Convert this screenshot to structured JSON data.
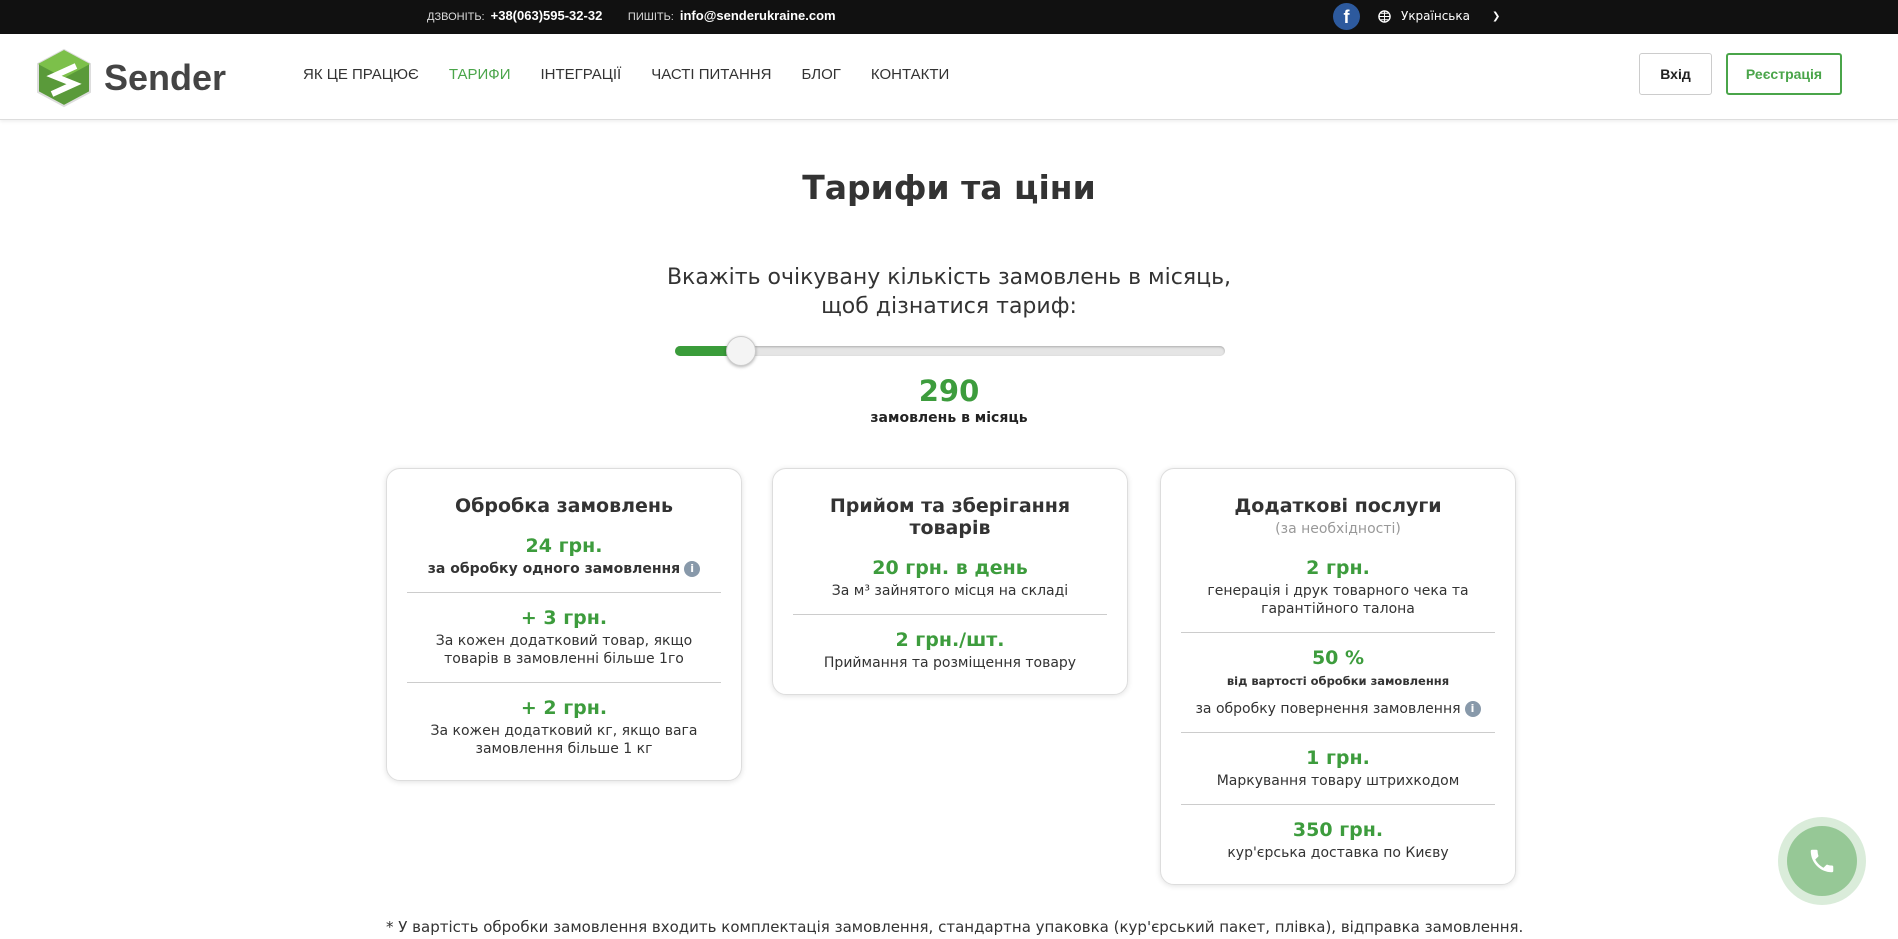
{
  "topbar": {
    "call_label": "ДЗВОНІТЬ:",
    "phone": "+38(063)595-32-32",
    "write_label": "ПИШІТЬ:",
    "email": "info@senderukraine.com",
    "facebook_icon": "f",
    "language": "Українська"
  },
  "header": {
    "logo_text": "Sender",
    "nav": [
      {
        "label": "ЯК ЦЕ ПРАЦЮЄ"
      },
      {
        "label": "ТАРИФИ",
        "active": true
      },
      {
        "label": "ІНТЕГРАЦІЇ"
      },
      {
        "label": "ЧАСТІ ПИТАННЯ"
      },
      {
        "label": "БЛОГ"
      },
      {
        "label": "КОНТАКТИ"
      }
    ],
    "login": "Вхід",
    "register": "Реєстрація"
  },
  "main": {
    "title": "Тарифи та ціни",
    "subtitle_1": "Вкажіть очікувану кількість замовлень в місяць,",
    "subtitle_2": "щоб дізнатися тариф:",
    "slider_percent": 12,
    "orders_value": "290",
    "orders_label": "замовлень в місяць",
    "cards": [
      {
        "title": "Обробка замовлень",
        "items": [
          {
            "price": "24 грн.",
            "desc": "за обробку одного замовлення"
          },
          {
            "price": "+ 3 грн.",
            "desc": "За кожен додатковий товар, якщо товарів в замовленні більше 1го"
          },
          {
            "price": "+ 2 грн.",
            "desc": "За кожен додатковий кг, якщо вага замовлення більше 1 кг"
          }
        ]
      },
      {
        "title": "Прийом та зберігання товарів",
        "items": [
          {
            "price": "20 грн. в день",
            "desc": "За м³ зайнятого місця на складі"
          },
          {
            "price": "2 грн./шт.",
            "desc": "Приймання та розміщення товару"
          }
        ]
      },
      {
        "title": "Додаткові послуги",
        "note": "(за необхідності)",
        "items": [
          {
            "price": "2 грн.",
            "desc": "генерація і друк товарного чека та гарантійного талона"
          },
          {
            "price": "50 %",
            "small": "від вартості обробки замовлення",
            "desc": "за обробку повернення замовлення"
          },
          {
            "price": "1 грн.",
            "desc": "Маркування товару штрихкодом"
          },
          {
            "price": "350 грн.",
            "desc": "кур'єрська доставка по Києву"
          }
        ]
      }
    ],
    "footnote": "* У вартість обробки замовлення входить комплектація замовлення, стандартна упаковка (кур'єрський пакет, плівка), відправка замовлення."
  },
  "colors": {
    "accent": "#3d9c3d",
    "topbar": "#111111",
    "facebook": "#2d5a9e"
  }
}
